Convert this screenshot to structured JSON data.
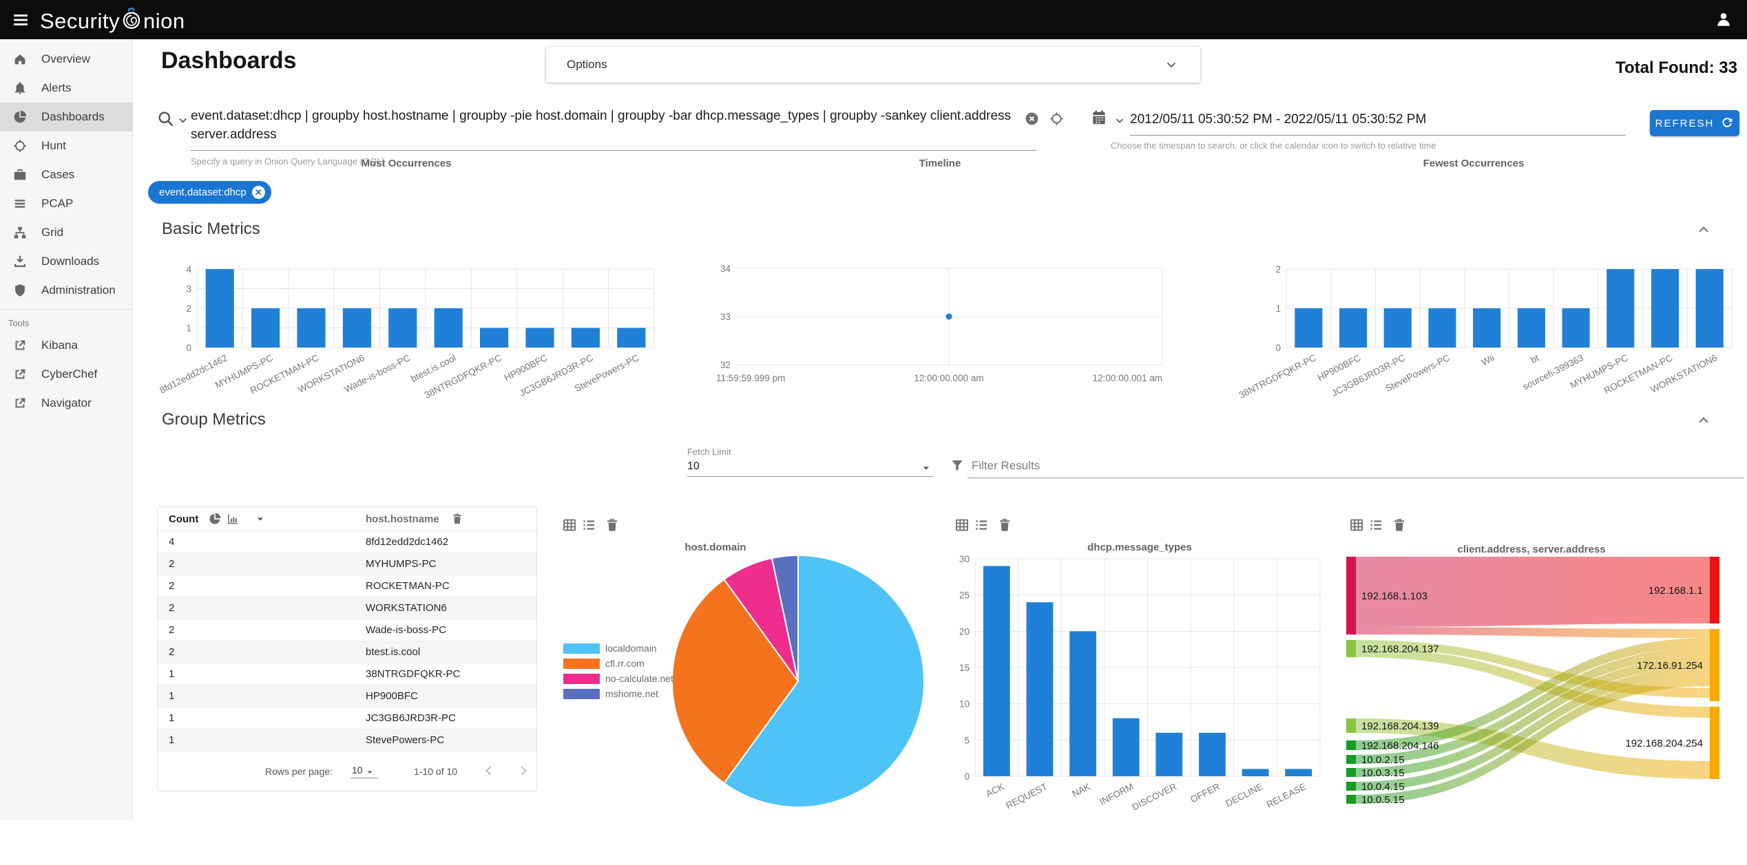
{
  "app": {
    "name": "Security Onion",
    "logo_first": "Security",
    "logo_rest": "nion"
  },
  "header": {
    "page_title": "Dashboards",
    "options_label": "Options",
    "total_found": "Total Found: 33"
  },
  "search": {
    "query": "event.dataset:dhcp | groupby host.hostname | groupby -pie host.domain | groupby -bar dhcp.message_types | groupby -sankey client.address server.address",
    "hint": "Specify a query in Onion Query Language (OQL)",
    "filter_chip": "event.dataset:dhcp",
    "chip_close": "x"
  },
  "timebar": {
    "range": "2012/05/11 05:30:52 PM - 2022/05/11 05:30:52 PM",
    "hint": "Choose the timespan to search, or click the calendar icon to switch to relative time",
    "refresh_label": "REFRESH"
  },
  "sections": {
    "basic": "Basic Metrics",
    "group": "Group Metrics"
  },
  "controls": {
    "fetch_limit_label": "Fetch Limit",
    "fetch_limit_value": "10",
    "filter_placeholder": "Filter Results"
  },
  "sidebar": {
    "items": [
      {
        "label": "Overview",
        "icon": "home",
        "selected": false
      },
      {
        "label": "Alerts",
        "icon": "bell",
        "selected": false
      },
      {
        "label": "Dashboards",
        "icon": "pie",
        "selected": true
      },
      {
        "label": "Hunt",
        "icon": "crosshair",
        "selected": false
      },
      {
        "label": "Cases",
        "icon": "briefcase",
        "selected": false
      },
      {
        "label": "PCAP",
        "icon": "lines",
        "selected": false
      },
      {
        "label": "Grid",
        "icon": "network",
        "selected": false
      },
      {
        "label": "Downloads",
        "icon": "download",
        "selected": false
      },
      {
        "label": "Administration",
        "icon": "shield",
        "selected": false
      }
    ],
    "tools_label": "Tools",
    "tools": [
      {
        "label": "Kibana",
        "icon": "external"
      },
      {
        "label": "CyberChef",
        "icon": "external"
      },
      {
        "label": "Navigator",
        "icon": "external"
      }
    ]
  },
  "table": {
    "columns": [
      "Count",
      "host.hostname"
    ],
    "rows": [
      [
        "4",
        "8fd12edd2dc1462"
      ],
      [
        "2",
        "MYHUMPS-PC"
      ],
      [
        "2",
        "ROCKETMAN-PC"
      ],
      [
        "2",
        "WORKSTATION6"
      ],
      [
        "2",
        "Wade-is-boss-PC"
      ],
      [
        "2",
        "btest.is.cool"
      ],
      [
        "1",
        "38NTRGDFQKR-PC"
      ],
      [
        "1",
        "HP900BFC"
      ],
      [
        "1",
        "JC3GB6JRD3R-PC"
      ],
      [
        "1",
        "StevePowers-PC"
      ]
    ],
    "footer": {
      "rows_per_page_label": "Rows per page:",
      "rows_per_page_value": "10",
      "range": "1-10 of 10"
    }
  },
  "colors": {
    "bar": "#2080d8",
    "accent": "#1976d2",
    "chip": "#1976d2",
    "refresh_button": "#1b76d2",
    "topbar": "#0c0c0c",
    "sidebar_bg": "#f6f6f6",
    "sidebar_selected": "#dcdcdc"
  },
  "chart_data": [
    {
      "id": "most",
      "type": "bar",
      "title": "Most Occurrences",
      "categories": [
        "8fd12edd2dc1462",
        "MYHUMPS-PC",
        "ROCKETMAN-PC",
        "WORKSTATION6",
        "Wade-is-boss-PC",
        "btest.is.cool",
        "38NTRGDFQKR-PC",
        "HP900BFC",
        "JC3GB6JRD3R-PC",
        "StevePowers-PC"
      ],
      "values": [
        4,
        2,
        2,
        2,
        2,
        2,
        1,
        1,
        1,
        1
      ],
      "ylim": [
        0,
        4
      ],
      "yticks": [
        0,
        1,
        2,
        3,
        4
      ],
      "grid": true
    },
    {
      "id": "timeline",
      "type": "scatter",
      "title": "Timeline",
      "x_ticks": [
        "11:59:59.999 pm",
        "12:00:00.000 am",
        "12:00:00.001 am"
      ],
      "yticks": [
        32,
        33,
        34
      ],
      "ylim": [
        32,
        34
      ],
      "points": [
        {
          "x": "12:00:00.000 am",
          "y": 33
        }
      ],
      "grid": true
    },
    {
      "id": "fewest",
      "type": "bar",
      "title": "Fewest Occurrences",
      "categories": [
        "38NTRGDFQKR-PC",
        "HP900BFC",
        "JC3GB6JRD3R-PC",
        "StevePowers-PC",
        "Wii",
        "bt",
        "sourcefi-399363",
        "MYHUMPS-PC",
        "ROCKETMAN-PC",
        "WORKSTATION6"
      ],
      "values": [
        1,
        1,
        1,
        1,
        1,
        1,
        1,
        2,
        2,
        2
      ],
      "ylim": [
        0,
        2
      ],
      "yticks": [
        0,
        1,
        2
      ],
      "grid": true
    },
    {
      "id": "host_domain",
      "type": "pie",
      "title": "host.domain",
      "labels": [
        "localdomain",
        "cfl.rr.com",
        "no-calculate.net",
        "mshome.net"
      ],
      "values": [
        18,
        9,
        2,
        1
      ],
      "colors": [
        "#4ec3f7",
        "#f4731c",
        "#ee2d8d",
        "#5a6fc0"
      ],
      "legend_position": "left"
    },
    {
      "id": "dhcp",
      "type": "bar",
      "title": "dhcp.message_types",
      "categories": [
        "ACK",
        "REQUEST",
        "NAK",
        "INFORM",
        "DISCOVER",
        "OFFER",
        "DECLINE",
        "RELEASE"
      ],
      "values": [
        29,
        24,
        20,
        8,
        6,
        6,
        1,
        1
      ],
      "ylim": [
        0,
        30
      ],
      "yticks": [
        0,
        5,
        10,
        15,
        20,
        25,
        30
      ],
      "grid": true
    },
    {
      "id": "sankey",
      "type": "sankey",
      "title": "client.address, server.address",
      "left_nodes": [
        {
          "label": "192.168.1.103",
          "color": "#d0164c"
        },
        {
          "label": "192.168.204.137",
          "color": "#8bc53f"
        },
        {
          "label": "192.168.204.139",
          "color": "#8bc53f"
        },
        {
          "label": "192.168.204.146",
          "color": "#169c23"
        },
        {
          "label": "10.0.2.15",
          "color": "#169c23"
        },
        {
          "label": "10.0.3.15",
          "color": "#169c23"
        },
        {
          "label": "10.0.4.15",
          "color": "#169c23"
        },
        {
          "label": "10.0.5.15",
          "color": "#169c23"
        }
      ],
      "right_nodes": [
        {
          "label": "192.168.1.1",
          "color": "#ee1111"
        },
        {
          "label": "172.16.91.254",
          "color": "#f7a802"
        },
        {
          "label": "192.168.204.254",
          "color": "#f7a802"
        }
      ],
      "flows": [
        {
          "source": "192.168.1.103",
          "target": "192.168.1.1",
          "value": 10
        },
        {
          "source": "192.168.1.103",
          "target": "172.16.91.254",
          "value": 1
        },
        {
          "source": "192.168.204.137",
          "target": "172.16.91.254",
          "value": 1
        },
        {
          "source": "192.168.204.137",
          "target": "192.168.204.254",
          "value": 1
        },
        {
          "source": "192.168.204.139",
          "target": "192.168.204.254",
          "value": 2
        },
        {
          "source": "192.168.204.146",
          "target": "172.16.91.254",
          "value": 1
        },
        {
          "source": "10.0.2.15",
          "target": "172.16.91.254",
          "value": 1
        },
        {
          "source": "10.0.3.15",
          "target": "172.16.91.254",
          "value": 1
        },
        {
          "source": "10.0.4.15",
          "target": "172.16.91.254",
          "value": 1
        },
        {
          "source": "10.0.5.15",
          "target": "172.16.91.254",
          "value": 1
        }
      ]
    }
  ]
}
